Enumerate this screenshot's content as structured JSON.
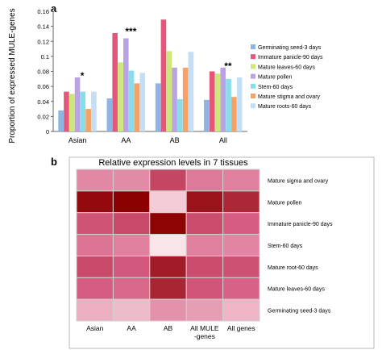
{
  "chart_data": [
    {
      "type": "bar",
      "panel_label": "a",
      "ylabel": "Proportion of expressed MULE-genes",
      "ylim": [
        0,
        0.16
      ],
      "yticks": [
        0,
        0.02,
        0.04,
        0.06,
        0.08,
        0.1,
        0.12,
        0.14,
        0.16
      ],
      "categories": [
        "Asian",
        "AA",
        "AB",
        "All"
      ],
      "series": [
        {
          "name": "Germinating seed-3 days",
          "color": "#8db4e2",
          "values": [
            0.028,
            0.044,
            0.064,
            0.042
          ]
        },
        {
          "name": "Immature panicle-90 days",
          "color": "#e4577b",
          "values": [
            0.053,
            0.131,
            0.149,
            0.08
          ]
        },
        {
          "name": "Mature leaves-60 days",
          "color": "#cde77a",
          "values": [
            0.05,
            0.092,
            0.107,
            0.077
          ]
        },
        {
          "name": "Mature pollen",
          "color": "#b9a3e3",
          "values": [
            0.072,
            0.124,
            0.085,
            0.085
          ]
        },
        {
          "name": "Stem-60 days",
          "color": "#89ddea",
          "values": [
            0.053,
            0.081,
            0.043,
            0.07
          ]
        },
        {
          "name": "Mature stigma and ovary",
          "color": "#f5a267",
          "values": [
            0.03,
            0.064,
            0.085,
            0.046
          ]
        },
        {
          "name": "Mature roots-60 days",
          "color": "#c4def5",
          "values": [
            0.053,
            0.078,
            0.106,
            0.072
          ]
        }
      ],
      "annotations": [
        {
          "category": "Asian",
          "text": "*"
        },
        {
          "category": "AA",
          "text": "***"
        },
        {
          "category": "All",
          "text": "**"
        }
      ],
      "legend": "right",
      "grid": false
    },
    {
      "type": "heatmap",
      "panel_label": "b",
      "title": "Relative expression levels in 7 tissues",
      "columns": [
        "Asian",
        "AA",
        "AB",
        "All MULE\n-genes",
        "All genes"
      ],
      "rows": [
        "Mature sigma and ovary",
        "Mature pollen",
        "Immature panicle-90 days",
        "Stem-60 days",
        "Mature root-60 days",
        "Mature leaves-60 days",
        "Germinating seed-3 days"
      ],
      "values": [
        [
          0.35,
          0.34,
          0.62,
          0.4,
          0.38
        ],
        [
          0.95,
          1.0,
          0.12,
          0.9,
          0.78
        ],
        [
          0.55,
          0.6,
          0.98,
          0.58,
          0.5
        ],
        [
          0.42,
          0.38,
          0.04,
          0.38,
          0.36
        ],
        [
          0.6,
          0.52,
          0.85,
          0.58,
          0.56
        ],
        [
          0.5,
          0.46,
          0.8,
          0.54,
          0.48
        ],
        [
          0.22,
          0.18,
          0.32,
          0.28,
          0.2
        ]
      ],
      "color_low": "#fcf0f3",
      "color_high": "#8b0000",
      "grid": true
    }
  ]
}
